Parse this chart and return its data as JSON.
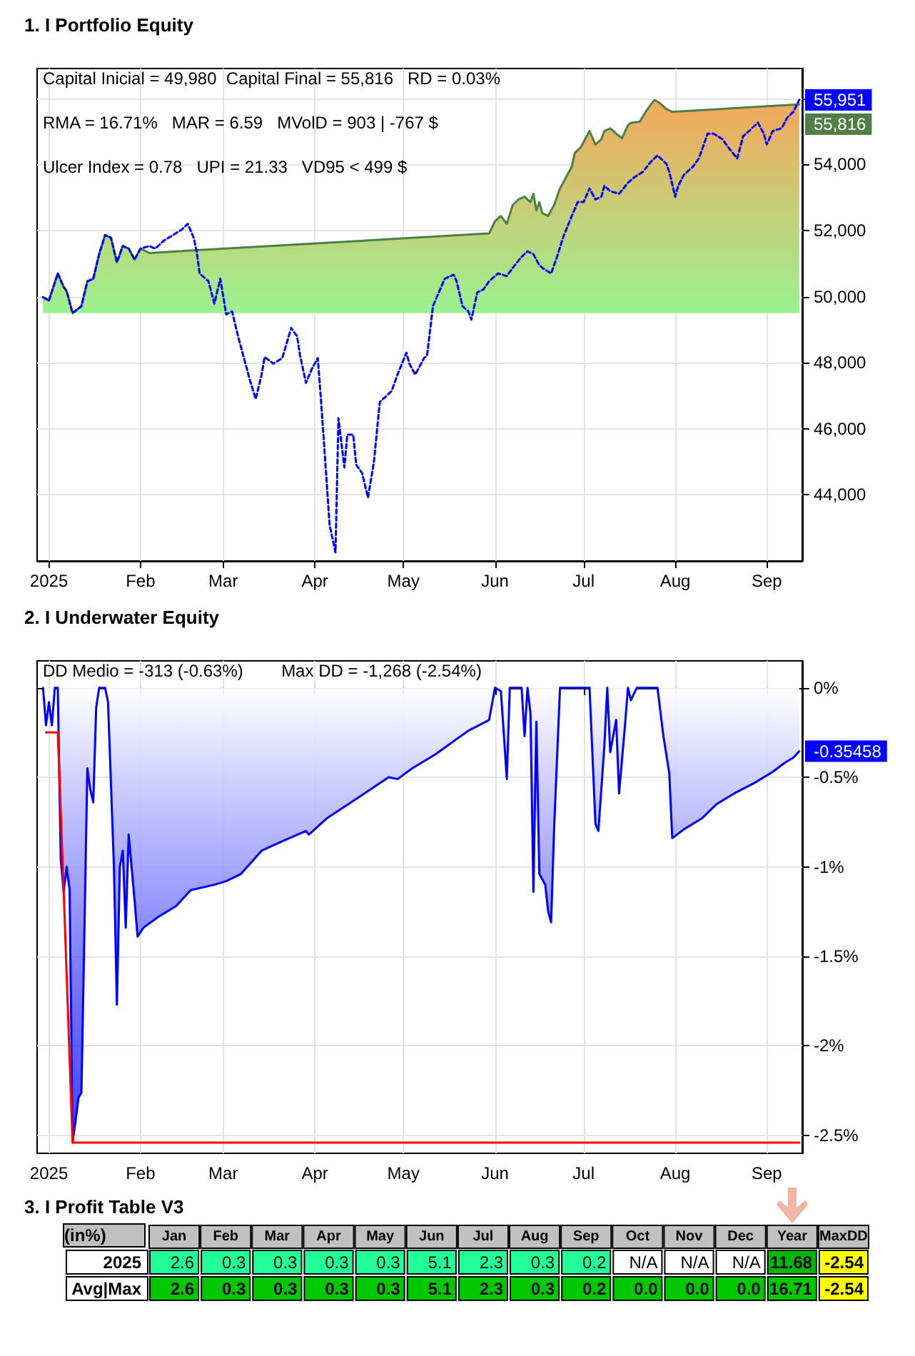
{
  "chart_data": [
    {
      "type": "line",
      "title": "1. I Portfolio Equity",
      "xlim": [
        "2024-12-28",
        "2025-09-13"
      ],
      "ylim": [
        42000,
        56900
      ],
      "grid": true,
      "marker": "none",
      "xticks": [
        {
          "value": "2025-01-01",
          "label": "2025"
        },
        {
          "value": "2025-02-01",
          "label": "Feb"
        },
        {
          "value": "2025-03-01",
          "label": "Mar"
        },
        {
          "value": "2025-04-01",
          "label": "Apr"
        },
        {
          "value": "2025-05-01",
          "label": "May"
        },
        {
          "value": "2025-06-01",
          "label": "Jun"
        },
        {
          "value": "2025-07-01",
          "label": "Jul"
        },
        {
          "value": "2025-08-01",
          "label": "Aug"
        },
        {
          "value": "2025-09-01",
          "label": "Sep"
        }
      ],
      "yticks": [
        {
          "value": 44000,
          "label": "44,000"
        },
        {
          "value": 46000,
          "label": "46,000"
        },
        {
          "value": 48000,
          "label": "48,000"
        },
        {
          "value": 50000,
          "label": "50,000"
        },
        {
          "value": 52000,
          "label": "52,000"
        },
        {
          "value": 54000,
          "label": "54,000"
        },
        {
          "value": 56000,
          "label": null
        }
      ],
      "annotations": [
        "Capital Inicial = 49,980  Capital Final = 55,816   RD = 0.03%",
        "RMA = 16.71%   MAR = 6.59   MVolD = 903 | -767 $",
        "Ulcer Index = 0.78   UPI = 21.33   VD95 < 499 $",
        {
          "text": "55,951",
          "x": "2025-09-12",
          "y": 55951
        },
        {
          "text": "55,816",
          "x": "2025-09-12",
          "y": 55816
        }
      ],
      "series": [
        {
          "type": "area",
          "color": "#4f7f45",
          "x": [
            "2024-12-30",
            "2025-01-01",
            "2025-01-04",
            "2025-01-06",
            "2025-01-07",
            "2025-01-09",
            "2025-01-12",
            "2025-01-14",
            "2025-01-16",
            "2025-01-18",
            "2025-01-20",
            "2025-01-22",
            "2025-01-24",
            "2025-01-26",
            "2025-01-28",
            "2025-01-30",
            "2025-02-01",
            "2025-02-04",
            "2025-05-30",
            "2025-06-01",
            "2025-06-03",
            "2025-06-05",
            "2025-06-07",
            "2025-06-09",
            "2025-06-11",
            "2025-06-13",
            "2025-06-14",
            "2025-06-15",
            "2025-06-16",
            "2025-06-17",
            "2025-06-19",
            "2025-06-21",
            "2025-06-23",
            "2025-06-25",
            "2025-06-27",
            "2025-06-28",
            "2025-06-30",
            "2025-07-02",
            "2025-07-03",
            "2025-07-05",
            "2025-07-07",
            "2025-07-08",
            "2025-07-10",
            "2025-07-12",
            "2025-07-14",
            "2025-07-16",
            "2025-07-17",
            "2025-07-20",
            "2025-07-22",
            "2025-07-24",
            "2025-07-25",
            "2025-07-27",
            "2025-07-29",
            "2025-07-31",
            "2025-09-12"
          ],
          "values": [
            49980,
            49880,
            50700,
            50290,
            50160,
            49500,
            49710,
            50460,
            50540,
            51280,
            51860,
            51780,
            51040,
            51530,
            51450,
            51120,
            51450,
            51320,
            51910,
            52280,
            52440,
            52200,
            52770,
            52940,
            53020,
            52860,
            53110,
            52610,
            52860,
            52530,
            52440,
            52770,
            53270,
            53600,
            53930,
            54350,
            54510,
            54850,
            55010,
            54600,
            54760,
            55010,
            55090,
            54930,
            54790,
            55180,
            55260,
            55290,
            55590,
            55840,
            55950,
            55840,
            55670,
            55590,
            55816
          ]
        },
        {
          "type": "line",
          "color": "#0000ff",
          "line_style": "dashed",
          "x": [
            "2024-12-30",
            "2025-01-01",
            "2025-01-04",
            "2025-01-06",
            "2025-01-07",
            "2025-01-09",
            "2025-01-12",
            "2025-01-14",
            "2025-01-16",
            "2025-01-18",
            "2025-01-20",
            "2025-01-22",
            "2025-01-24",
            "2025-01-26",
            "2025-01-28",
            "2025-01-30",
            "2025-02-01",
            "2025-02-04",
            "2025-02-06",
            "2025-02-09",
            "2025-02-12",
            "2025-02-15",
            "2025-02-17",
            "2025-02-19",
            "2025-02-20",
            "2025-02-21",
            "2025-02-24",
            "2025-02-26",
            "2025-02-28",
            "2025-03-02",
            "2025-03-04",
            "2025-03-06",
            "2025-03-08",
            "2025-03-10",
            "2025-03-12",
            "2025-03-14",
            "2025-03-15",
            "2025-03-18",
            "2025-03-21",
            "2025-03-24",
            "2025-03-26",
            "2025-03-27",
            "2025-03-29",
            "2025-03-31",
            "2025-04-02",
            "2025-04-03",
            "2025-04-05",
            "2025-04-06",
            "2025-04-08",
            "2025-04-09",
            "2025-04-11",
            "2025-04-12",
            "2025-04-14",
            "2025-04-15",
            "2025-04-17",
            "2025-04-19",
            "2025-04-21",
            "2025-04-23",
            "2025-04-27",
            "2025-04-29",
            "2025-05-02",
            "2025-05-03",
            "2025-05-05",
            "2025-05-08",
            "2025-05-09",
            "2025-05-11",
            "2025-05-13",
            "2025-05-15",
            "2025-05-18",
            "2025-05-19",
            "2025-05-21",
            "2025-05-23",
            "2025-05-24",
            "2025-05-26",
            "2025-05-28",
            "2025-05-30",
            "2025-06-02",
            "2025-06-05",
            "2025-06-07",
            "2025-06-10",
            "2025-06-12",
            "2025-06-14",
            "2025-06-16",
            "2025-06-17",
            "2025-06-20",
            "2025-06-22",
            "2025-06-24",
            "2025-06-27",
            "2025-06-29",
            "2025-07-01",
            "2025-07-03",
            "2025-07-05",
            "2025-07-07",
            "2025-07-08",
            "2025-07-10",
            "2025-07-13",
            "2025-07-16",
            "2025-07-18",
            "2025-07-21",
            "2025-07-24",
            "2025-07-26",
            "2025-07-29",
            "2025-07-30",
            "2025-08-01",
            "2025-08-02",
            "2025-08-04",
            "2025-08-07",
            "2025-08-09",
            "2025-08-12",
            "2025-08-14",
            "2025-08-17",
            "2025-08-19",
            "2025-08-22",
            "2025-08-24",
            "2025-08-26",
            "2025-08-29",
            "2025-08-31",
            "2025-09-01",
            "2025-09-03",
            "2025-09-06",
            "2025-09-08",
            "2025-09-10",
            "2025-09-12"
          ],
          "values": [
            49980,
            49880,
            50700,
            50290,
            50160,
            49500,
            49710,
            50460,
            50540,
            51280,
            51860,
            51780,
            51040,
            51530,
            51450,
            51120,
            51450,
            51530,
            51450,
            51700,
            51860,
            52030,
            52200,
            51780,
            51370,
            50700,
            50460,
            49790,
            50540,
            49460,
            49550,
            48800,
            48140,
            47480,
            46900,
            47640,
            48170,
            47970,
            48140,
            49050,
            48800,
            48220,
            47390,
            47810,
            48140,
            46980,
            44410,
            43090,
            42260,
            46320,
            44830,
            45820,
            45820,
            44910,
            44660,
            43920,
            44990,
            46810,
            47140,
            47640,
            48300,
            47970,
            47640,
            48140,
            48220,
            49710,
            50130,
            50540,
            50660,
            50460,
            49710,
            49550,
            49300,
            50130,
            50210,
            50460,
            50700,
            50620,
            50870,
            51200,
            51370,
            51280,
            50950,
            50870,
            50700,
            51200,
            51780,
            52440,
            52860,
            52860,
            53270,
            52940,
            53020,
            53350,
            53190,
            53110,
            53440,
            53600,
            53770,
            54100,
            54270,
            54020,
            53770,
            53020,
            53350,
            53690,
            53930,
            54180,
            54930,
            54930,
            54760,
            54510,
            54180,
            54850,
            55010,
            55260,
            54930,
            54600,
            55010,
            55090,
            55420,
            55590,
            55951
          ]
        }
      ]
    },
    {
      "type": "line",
      "title": "2. I Underwater Equity",
      "xlim": [
        "2024-12-28",
        "2025-09-13"
      ],
      "ylim": [
        -2.6,
        0.15
      ],
      "grid": true,
      "marker": "none",
      "xticks": [
        {
          "value": "2025-01-01",
          "label": "2025"
        },
        {
          "value": "2025-02-01",
          "label": "Feb"
        },
        {
          "value": "2025-03-01",
          "label": "Mar"
        },
        {
          "value": "2025-04-01",
          "label": "Apr"
        },
        {
          "value": "2025-05-01",
          "label": "May"
        },
        {
          "value": "2025-06-01",
          "label": "Jun"
        },
        {
          "value": "2025-07-01",
          "label": "Jul"
        },
        {
          "value": "2025-08-01",
          "label": "Aug"
        },
        {
          "value": "2025-09-01",
          "label": "Sep"
        }
      ],
      "yticks": [
        {
          "value": 0,
          "label": "0%"
        },
        {
          "value": -0.5,
          "label": "-0.5%"
        },
        {
          "value": -1,
          "label": "-1%"
        },
        {
          "value": -1.5,
          "label": "-1.5%"
        },
        {
          "value": -2,
          "label": "-2%"
        },
        {
          "value": -2.5,
          "label": "-2.5%"
        }
      ],
      "annotations": [
        "DD Medio = -313 (-0.63%)        Max DD = -1,268 (-2.54%)",
        {
          "text": "-0.35458",
          "x": "2025-09-12",
          "y": -0.35458
        }
      ],
      "series": [
        {
          "type": "area",
          "color": "#0000ff",
          "x": [
            "2024-12-30",
            "2024-12-31",
            "2025-01-01",
            "2025-01-02",
            "2025-01-03",
            "2025-01-04",
            "2025-01-05",
            "2025-01-06",
            "2025-01-07",
            "2025-01-08",
            "2025-01-09",
            "2025-01-10",
            "2025-01-11",
            "2025-01-12",
            "2025-01-13",
            "2025-01-14",
            "2025-01-15",
            "2025-01-16",
            "2025-01-17",
            "2025-01-18",
            "2025-01-20",
            "2025-01-21",
            "2025-01-23",
            "2025-01-24",
            "2025-01-25",
            "2025-01-26",
            "2025-01-27",
            "2025-01-28",
            "2025-01-30",
            "2025-01-31",
            "2025-02-02",
            "2025-02-07",
            "2025-02-13",
            "2025-02-18",
            "2025-02-26",
            "2025-03-02",
            "2025-03-07",
            "2025-03-14",
            "2025-03-22",
            "2025-03-29",
            "2025-03-30",
            "2025-04-05",
            "2025-04-16",
            "2025-04-26",
            "2025-04-29",
            "2025-05-04",
            "2025-05-12",
            "2025-05-17",
            "2025-05-23",
            "2025-05-30",
            "2025-06-01",
            "2025-06-03",
            "2025-06-05",
            "2025-06-06",
            "2025-06-10",
            "2025-06-11",
            "2025-06-12",
            "2025-06-13",
            "2025-06-14",
            "2025-06-15",
            "2025-06-16",
            "2025-06-18",
            "2025-06-19",
            "2025-06-20",
            "2025-06-21",
            "2025-06-23",
            "2025-07-03",
            "2025-07-05",
            "2025-07-06",
            "2025-07-08",
            "2025-07-09",
            "2025-07-10",
            "2025-07-12",
            "2025-07-13",
            "2025-07-15",
            "2025-07-16",
            "2025-07-17",
            "2025-07-19",
            "2025-07-26",
            "2025-07-28",
            "2025-07-30",
            "2025-07-31",
            "2025-08-04",
            "2025-08-10",
            "2025-08-15",
            "2025-08-21",
            "2025-08-28",
            "2025-09-03",
            "2025-09-07",
            "2025-09-10",
            "2025-09-12"
          ],
          "values": [
            0,
            -0.21,
            -0.08,
            -0.21,
            0,
            0,
            -0.96,
            -1.14,
            -1.0,
            -1.13,
            -2.54,
            -2.42,
            -2.29,
            -2.26,
            -1.37,
            -0.45,
            -0.57,
            -0.64,
            -0.11,
            0,
            0,
            -0.08,
            -1.0,
            -1.77,
            -1.0,
            -0.91,
            -1.34,
            -0.82,
            -1.19,
            -1.39,
            -1.34,
            -1.28,
            -1.22,
            -1.13,
            -1.1,
            -1.08,
            -1.04,
            -0.91,
            -0.85,
            -0.8,
            -0.82,
            -0.73,
            -0.61,
            -0.5,
            -0.51,
            -0.45,
            -0.37,
            -0.31,
            -0.24,
            -0.18,
            0,
            -0.02,
            -0.51,
            0,
            0,
            -0.27,
            0,
            -0.14,
            -1.14,
            -0.19,
            -1.04,
            -1.1,
            -1.25,
            -1.31,
            -0.79,
            0,
            0,
            -0.76,
            -0.8,
            -0.33,
            0,
            -0.36,
            -0.18,
            -0.59,
            -0.21,
            0,
            -0.07,
            0,
            0,
            -0.27,
            -0.48,
            -0.84,
            -0.79,
            -0.73,
            -0.65,
            -0.59,
            -0.53,
            -0.47,
            -0.42,
            -0.39,
            -0.35458
          ]
        },
        {
          "type": "line",
          "color": "#ff0000",
          "x": [
            "2024-12-31",
            "2025-01-04",
            "2025-01-06",
            "2025-01-09",
            "2025-09-12"
          ],
          "values": [
            -0.25,
            -0.25,
            -1.14,
            -2.54,
            -2.54
          ]
        }
      ]
    },
    {
      "type": "heatmap",
      "title": "3. I Profit Table V3",
      "ylabel": "(in%)",
      "categories": [
        "Jan",
        "Feb",
        "Mar",
        "Apr",
        "May",
        "Jun",
        "Jul",
        "Aug",
        "Sep",
        "Oct",
        "Nov",
        "Dec",
        "Year",
        "MaxDD"
      ],
      "y_categories": [
        "2025",
        "Avg|Max"
      ],
      "cells": [
        [
          2.6,
          0.3,
          0.3,
          0.3,
          0.3,
          5.1,
          2.3,
          0.3,
          0.2,
          null,
          null,
          null,
          11.68,
          -2.54
        ],
        [
          2.6,
          0.3,
          0.3,
          0.3,
          0.3,
          5.1,
          2.3,
          0.3,
          0.2,
          0.0,
          0.0,
          0.0,
          16.71,
          -2.54
        ]
      ],
      "cell_labels": [
        [
          "2.6",
          "0.3",
          "0.3",
          "0.3",
          "0.3",
          "5.1",
          "2.3",
          "0.3",
          "0.2",
          "N/A",
          "N/A",
          "N/A",
          "11.68",
          "-2.54"
        ],
        [
          "2.6",
          "0.3",
          "0.3",
          "0.3",
          "0.3",
          "5.1",
          "2.3",
          "0.3",
          "0.2",
          "0.0",
          "0.0",
          "0.0",
          "16.71",
          "-2.54"
        ]
      ],
      "colors": [
        [
          "#22ff99",
          "#22ff99",
          "#22ff99",
          "#22ff99",
          "#22ff99",
          "#22ff99",
          "#22ff99",
          "#22ff99",
          "#22ff99",
          "#ffffff",
          "#ffffff",
          "#ffffff",
          "#00b800",
          "#ffff00"
        ],
        [
          "#00c800",
          "#00c800",
          "#00c800",
          "#00c800",
          "#00c800",
          "#00c800",
          "#00c800",
          "#00c800",
          "#00c800",
          "#00c800",
          "#00c800",
          "#00c800",
          "#00c800",
          "#ffff00"
        ]
      ]
    }
  ]
}
